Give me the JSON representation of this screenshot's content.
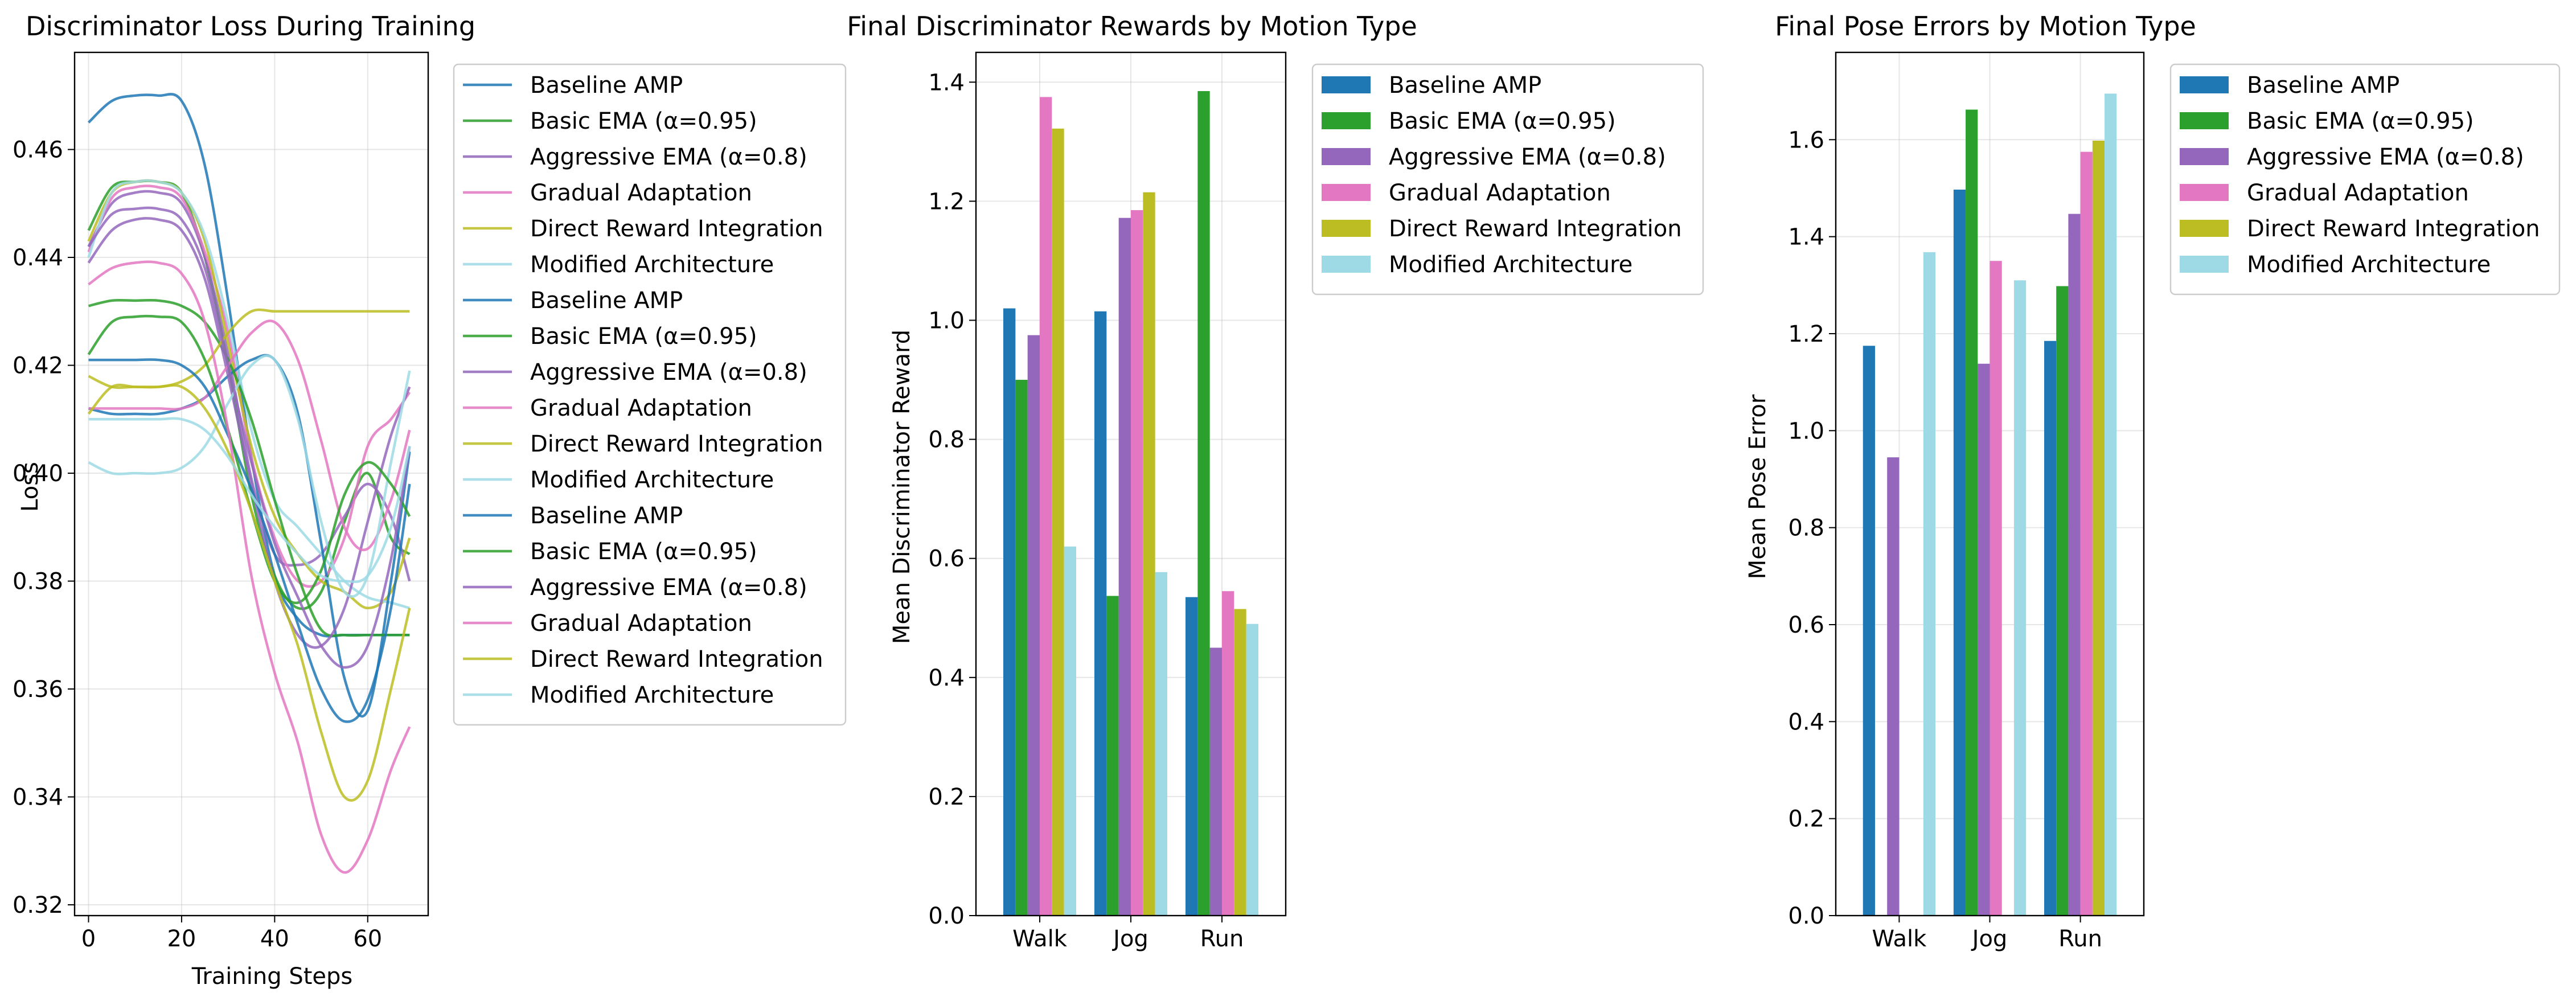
{
  "series_names": [
    "Baseline AMP",
    "Basic EMA (α=0.95)",
    "Aggressive EMA (α=0.8)",
    "Gradual Adaptation",
    "Direct Reward Integration",
    "Modified Architecture"
  ],
  "colors": [
    "#1f77b4",
    "#2ca02c",
    "#9467bd",
    "#e377c2",
    "#bcbd22",
    "#9edae5"
  ],
  "chart_data": [
    {
      "type": "line",
      "title": "Discriminator Loss During Training",
      "xlabel": "Training Steps",
      "ylabel": "Loss",
      "xlim": [
        -3,
        73
      ],
      "ylim": [
        0.318,
        0.478
      ],
      "xticks": [
        0,
        20,
        40,
        60
      ],
      "yticks": [
        0.32,
        0.34,
        0.36,
        0.38,
        0.4,
        0.42,
        0.44,
        0.46
      ],
      "legend": "outside-right",
      "grid": true,
      "x": [
        0,
        5,
        10,
        15,
        20,
        25,
        30,
        35,
        40,
        45,
        50,
        55,
        60,
        65,
        69
      ],
      "series": [
        {
          "name": "Baseline AMP",
          "values": [
            0.465,
            0.469,
            0.47,
            0.47,
            0.469,
            0.457,
            0.432,
            0.403,
            0.381,
            0.373,
            0.37,
            0.37,
            0.37,
            0.37,
            0.37
          ]
        },
        {
          "name": "Basic EMA (α=0.95)",
          "values": [
            0.445,
            0.453,
            0.454,
            0.454,
            0.452,
            0.44,
            0.42,
            0.396,
            0.381,
            0.375,
            0.378,
            0.391,
            0.4,
            0.388,
            0.385
          ]
        },
        {
          "name": "Aggressive EMA (α=0.8)",
          "values": [
            0.442,
            0.45,
            0.452,
            0.452,
            0.45,
            0.44,
            0.422,
            0.399,
            0.385,
            0.383,
            0.385,
            0.392,
            0.398,
            0.392,
            0.38
          ]
        },
        {
          "name": "Gradual Adaptation",
          "values": [
            0.441,
            0.451,
            0.453,
            0.453,
            0.451,
            0.441,
            0.426,
            0.403,
            0.388,
            0.38,
            0.38,
            0.388,
            0.405,
            0.41,
            0.415
          ]
        },
        {
          "name": "Direct Reward Integration",
          "values": [
            0.443,
            0.452,
            0.454,
            0.454,
            0.452,
            0.443,
            0.424,
            0.405,
            0.392,
            0.385,
            0.38,
            0.378,
            0.375,
            0.378,
            0.388
          ]
        },
        {
          "name": "Modified Architecture",
          "values": [
            0.44,
            0.452,
            0.454,
            0.454,
            0.452,
            0.444,
            0.428,
            0.408,
            0.395,
            0.39,
            0.385,
            0.38,
            0.377,
            0.376,
            0.375
          ]
        },
        {
          "name": "Baseline AMP",
          "values": [
            0.412,
            0.411,
            0.411,
            0.411,
            0.412,
            0.414,
            0.418,
            0.421,
            0.421,
            0.411,
            0.387,
            0.362,
            0.356,
            0.38,
            0.404
          ]
        },
        {
          "name": "Basic EMA (α=0.95)",
          "values": [
            0.431,
            0.432,
            0.432,
            0.432,
            0.431,
            0.428,
            0.421,
            0.41,
            0.395,
            0.381,
            0.371,
            0.37,
            0.37,
            0.37,
            0.37
          ]
        },
        {
          "name": "Aggressive EMA (α=0.8)",
          "values": [
            0.439,
            0.445,
            0.447,
            0.447,
            0.445,
            0.436,
            0.418,
            0.398,
            0.38,
            0.37,
            0.368,
            0.375,
            0.391,
            0.407,
            0.416
          ]
        },
        {
          "name": "Gradual Adaptation",
          "values": [
            0.412,
            0.412,
            0.412,
            0.412,
            0.412,
            0.414,
            0.42,
            0.426,
            0.428,
            0.421,
            0.406,
            0.39,
            0.386,
            0.395,
            0.408
          ]
        },
        {
          "name": "Direct Reward Integration",
          "values": [
            0.418,
            0.416,
            0.416,
            0.416,
            0.417,
            0.42,
            0.426,
            0.43,
            0.43,
            0.43,
            0.43,
            0.43,
            0.43,
            0.43,
            0.43
          ]
        },
        {
          "name": "Modified Architecture",
          "values": [
            0.402,
            0.4,
            0.4,
            0.4,
            0.401,
            0.405,
            0.413,
            0.42,
            0.421,
            0.41,
            0.391,
            0.378,
            0.381,
            0.402,
            0.419
          ]
        },
        {
          "name": "Baseline AMP",
          "values": [
            0.421,
            0.421,
            0.421,
            0.421,
            0.42,
            0.416,
            0.407,
            0.397,
            0.385,
            0.372,
            0.36,
            0.354,
            0.358,
            0.375,
            0.398
          ]
        },
        {
          "name": "Basic EMA (α=0.95)",
          "values": [
            0.422,
            0.428,
            0.429,
            0.429,
            0.428,
            0.421,
            0.408,
            0.393,
            0.38,
            0.376,
            0.382,
            0.396,
            0.402,
            0.398,
            0.392
          ]
        },
        {
          "name": "Aggressive EMA (α=0.8)",
          "values": [
            0.442,
            0.448,
            0.449,
            0.449,
            0.447,
            0.438,
            0.42,
            0.402,
            0.387,
            0.377,
            0.368,
            0.364,
            0.368,
            0.384,
            0.405
          ]
        },
        {
          "name": "Gradual Adaptation",
          "values": [
            0.435,
            0.438,
            0.439,
            0.439,
            0.437,
            0.428,
            0.408,
            0.381,
            0.363,
            0.35,
            0.333,
            0.326,
            0.332,
            0.345,
            0.353
          ]
        },
        {
          "name": "Direct Reward Integration",
          "values": [
            0.411,
            0.416,
            0.416,
            0.416,
            0.416,
            0.412,
            0.404,
            0.393,
            0.38,
            0.368,
            0.352,
            0.34,
            0.343,
            0.36,
            0.375
          ]
        },
        {
          "name": "Modified Architecture",
          "values": [
            0.41,
            0.41,
            0.41,
            0.41,
            0.41,
            0.408,
            0.403,
            0.396,
            0.39,
            0.385,
            0.381,
            0.38,
            0.381,
            0.39,
            0.405
          ]
        }
      ]
    },
    {
      "type": "bar",
      "title": "Final Discriminator Rewards by Motion Type",
      "xlabel": "",
      "ylabel": "Mean Discriminator Reward",
      "categories": [
        "Walk",
        "Jog",
        "Run"
      ],
      "ylim": [
        0,
        1.45
      ],
      "yticks": [
        0.0,
        0.2,
        0.4,
        0.6,
        0.8,
        1.0,
        1.2,
        1.4
      ],
      "legend": "outside-right",
      "grid": true,
      "series": [
        {
          "name": "Baseline AMP",
          "values": [
            1.02,
            1.015,
            0.535
          ]
        },
        {
          "name": "Basic EMA (α=0.95)",
          "values": [
            0.9,
            0.537,
            1.385
          ]
        },
        {
          "name": "Aggressive EMA (α=0.8)",
          "values": [
            0.975,
            1.172,
            0.45
          ]
        },
        {
          "name": "Gradual Adaptation",
          "values": [
            1.375,
            1.185,
            0.545
          ]
        },
        {
          "name": "Direct Reward Integration",
          "values": [
            1.322,
            1.215,
            0.515
          ]
        },
        {
          "name": "Modified Architecture",
          "values": [
            0.62,
            0.577,
            0.49
          ]
        }
      ]
    },
    {
      "type": "bar",
      "title": "Final Pose Errors by Motion Type",
      "xlabel": "",
      "ylabel": "Mean Pose Error",
      "categories": [
        "Walk",
        "Jog",
        "Run"
      ],
      "ylim": [
        0,
        1.78
      ],
      "yticks": [
        0.0,
        0.2,
        0.4,
        0.6,
        0.8,
        1.0,
        1.2,
        1.4,
        1.6
      ],
      "legend": "outside-right",
      "grid": true,
      "series": [
        {
          "name": "Baseline AMP",
          "values": [
            1.175,
            1.497,
            1.185
          ]
        },
        {
          "name": "Basic EMA (α=0.95)",
          "values": [
            0.0,
            1.662,
            1.298
          ]
        },
        {
          "name": "Aggressive EMA (α=0.8)",
          "values": [
            0.945,
            1.138,
            1.447
          ]
        },
        {
          "name": "Gradual Adaptation",
          "values": [
            0.0,
            1.35,
            1.575
          ]
        },
        {
          "name": "Direct Reward Integration",
          "values": [
            0.0,
            0.0,
            1.598
          ]
        },
        {
          "name": "Modified Architecture",
          "values": [
            1.368,
            1.31,
            1.695
          ]
        }
      ]
    }
  ]
}
